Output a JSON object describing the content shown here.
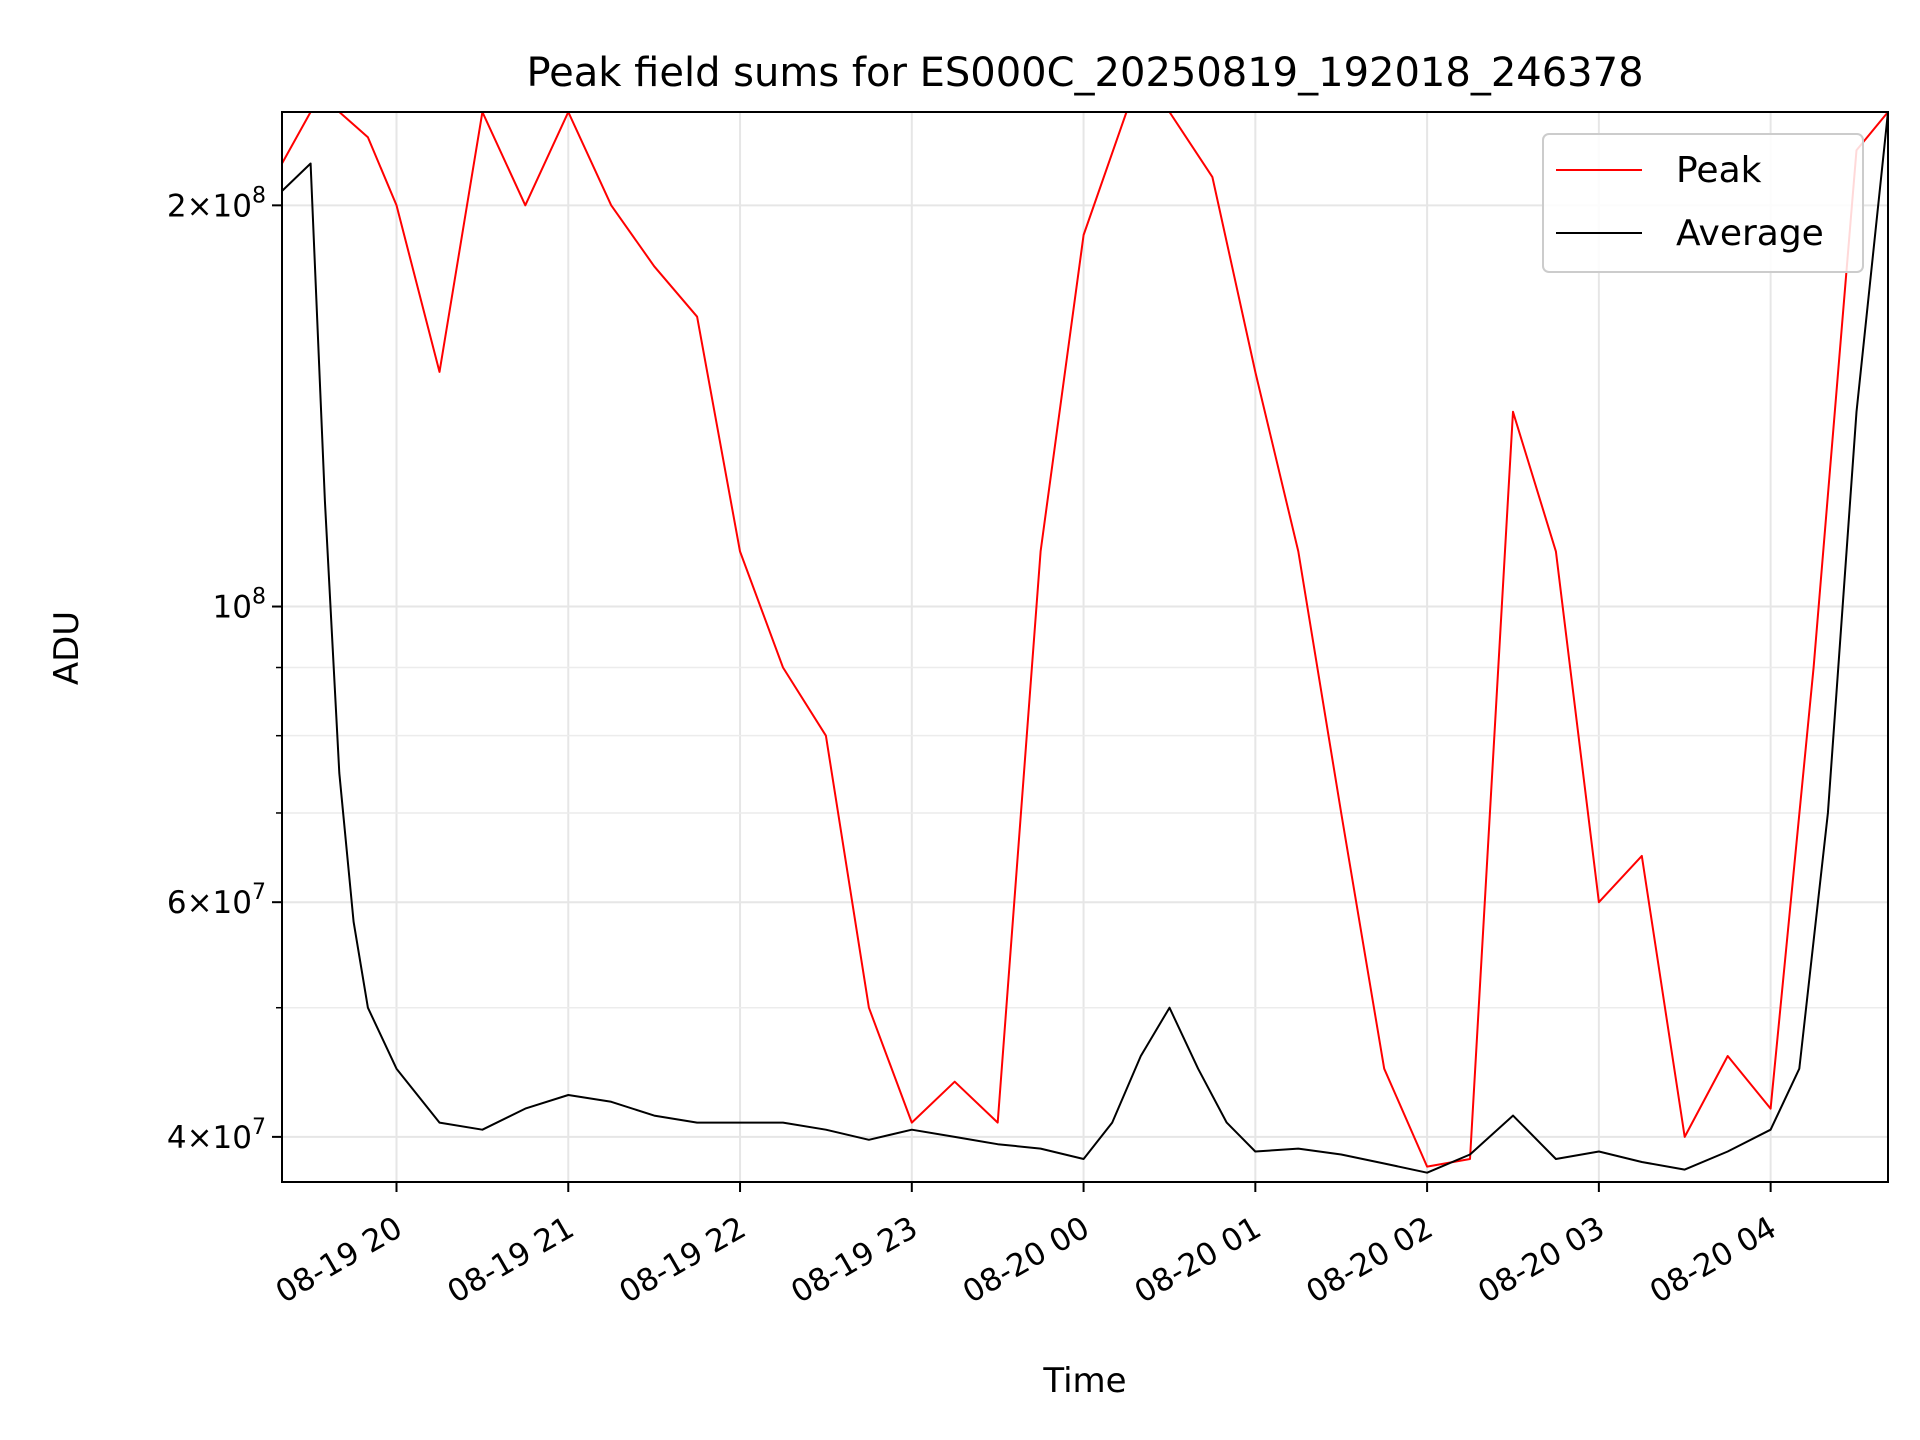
{
  "chart_data": {
    "type": "line",
    "title": "Peak field sums for ES000C_20250819_192018_246378",
    "xlabel": "Time",
    "ylabel": "ADU",
    "yscale": "log",
    "ylim": [
      37000000,
      235000000
    ],
    "xlim": [
      "2025-08-19 19:20",
      "2025-08-20 04:41"
    ],
    "grid": true,
    "legend_position": "top-right",
    "x_ticks": [
      "08-19 20",
      "08-19 21",
      "08-19 22",
      "08-19 23",
      "08-20 00",
      "08-20 01",
      "08-20 02",
      "08-20 03",
      "08-20 04"
    ],
    "y_ticks": [
      {
        "value": 40000000,
        "base": "4",
        "exp": "7"
      },
      {
        "value": 60000000,
        "base": "6",
        "exp": "7"
      },
      {
        "value": 100000000,
        "base": "",
        "exp": "8"
      },
      {
        "value": 200000000,
        "base": "2",
        "exp": "8"
      }
    ],
    "series": [
      {
        "name": "Peak",
        "color": "#ff0000",
        "x": [
          "2025-08-19 19:20",
          "2025-08-19 19:30",
          "2025-08-19 19:40",
          "2025-08-19 19:50",
          "2025-08-19 20:00",
          "2025-08-19 20:15",
          "2025-08-19 20:30",
          "2025-08-19 20:45",
          "2025-08-19 21:00",
          "2025-08-19 21:15",
          "2025-08-19 21:30",
          "2025-08-19 21:45",
          "2025-08-19 22:00",
          "2025-08-19 22:15",
          "2025-08-19 22:30",
          "2025-08-19 22:45",
          "2025-08-19 23:00",
          "2025-08-19 23:15",
          "2025-08-19 23:30",
          "2025-08-19 23:45",
          "2025-08-20 00:00",
          "2025-08-20 00:15",
          "2025-08-20 00:30",
          "2025-08-20 00:45",
          "2025-08-20 01:00",
          "2025-08-20 01:15",
          "2025-08-20 01:30",
          "2025-08-20 01:45",
          "2025-08-20 02:00",
          "2025-08-20 02:15",
          "2025-08-20 02:30",
          "2025-08-20 02:45",
          "2025-08-20 03:00",
          "2025-08-20 03:15",
          "2025-08-20 03:30",
          "2025-08-20 03:45",
          "2025-08-20 04:00",
          "2025-08-20 04:15",
          "2025-08-20 04:30",
          "2025-08-20 04:41"
        ],
        "y": [
          215000000,
          235000000,
          235000000,
          225000000,
          200000000,
          150000000,
          235000000,
          200000000,
          235000000,
          200000000,
          180000000,
          165000000,
          110000000,
          90000000,
          80000000,
          50000000,
          41000000,
          44000000,
          41000000,
          110000000,
          190000000,
          235000000,
          235000000,
          210000000,
          150000000,
          110000000,
          70000000,
          45000000,
          38000000,
          38500000,
          140000000,
          110000000,
          60000000,
          65000000,
          40000000,
          46000000,
          42000000,
          90000000,
          220000000,
          235000000
        ]
      },
      {
        "name": "Average",
        "color": "#000000",
        "x": [
          "2025-08-19 19:20",
          "2025-08-19 19:30",
          "2025-08-19 19:35",
          "2025-08-19 19:40",
          "2025-08-19 19:45",
          "2025-08-19 19:50",
          "2025-08-19 20:00",
          "2025-08-19 20:15",
          "2025-08-19 20:30",
          "2025-08-19 20:45",
          "2025-08-19 21:00",
          "2025-08-19 21:15",
          "2025-08-19 21:30",
          "2025-08-19 21:45",
          "2025-08-19 22:00",
          "2025-08-19 22:15",
          "2025-08-19 22:30",
          "2025-08-19 22:45",
          "2025-08-19 23:00",
          "2025-08-19 23:15",
          "2025-08-19 23:30",
          "2025-08-19 23:45",
          "2025-08-20 00:00",
          "2025-08-20 00:10",
          "2025-08-20 00:20",
          "2025-08-20 00:30",
          "2025-08-20 00:40",
          "2025-08-20 00:50",
          "2025-08-20 01:00",
          "2025-08-20 01:15",
          "2025-08-20 01:30",
          "2025-08-20 01:45",
          "2025-08-20 02:00",
          "2025-08-20 02:15",
          "2025-08-20 02:30",
          "2025-08-20 02:45",
          "2025-08-20 03:00",
          "2025-08-20 03:15",
          "2025-08-20 03:30",
          "2025-08-20 03:45",
          "2025-08-20 04:00",
          "2025-08-20 04:10",
          "2025-08-20 04:20",
          "2025-08-20 04:30",
          "2025-08-20 04:41"
        ],
        "y": [
          205000000,
          215000000,
          120000000,
          75000000,
          58000000,
          50000000,
          45000000,
          41000000,
          40500000,
          42000000,
          43000000,
          42500000,
          41500000,
          41000000,
          41000000,
          41000000,
          40500000,
          39800000,
          40500000,
          40000000,
          39500000,
          39200000,
          38500000,
          41000000,
          46000000,
          50000000,
          45000000,
          41000000,
          39000000,
          39200000,
          38800000,
          38200000,
          37600000,
          38800000,
          41500000,
          38500000,
          39000000,
          38300000,
          37800000,
          39000000,
          40500000,
          45000000,
          70000000,
          140000000,
          235000000
        ]
      }
    ]
  }
}
